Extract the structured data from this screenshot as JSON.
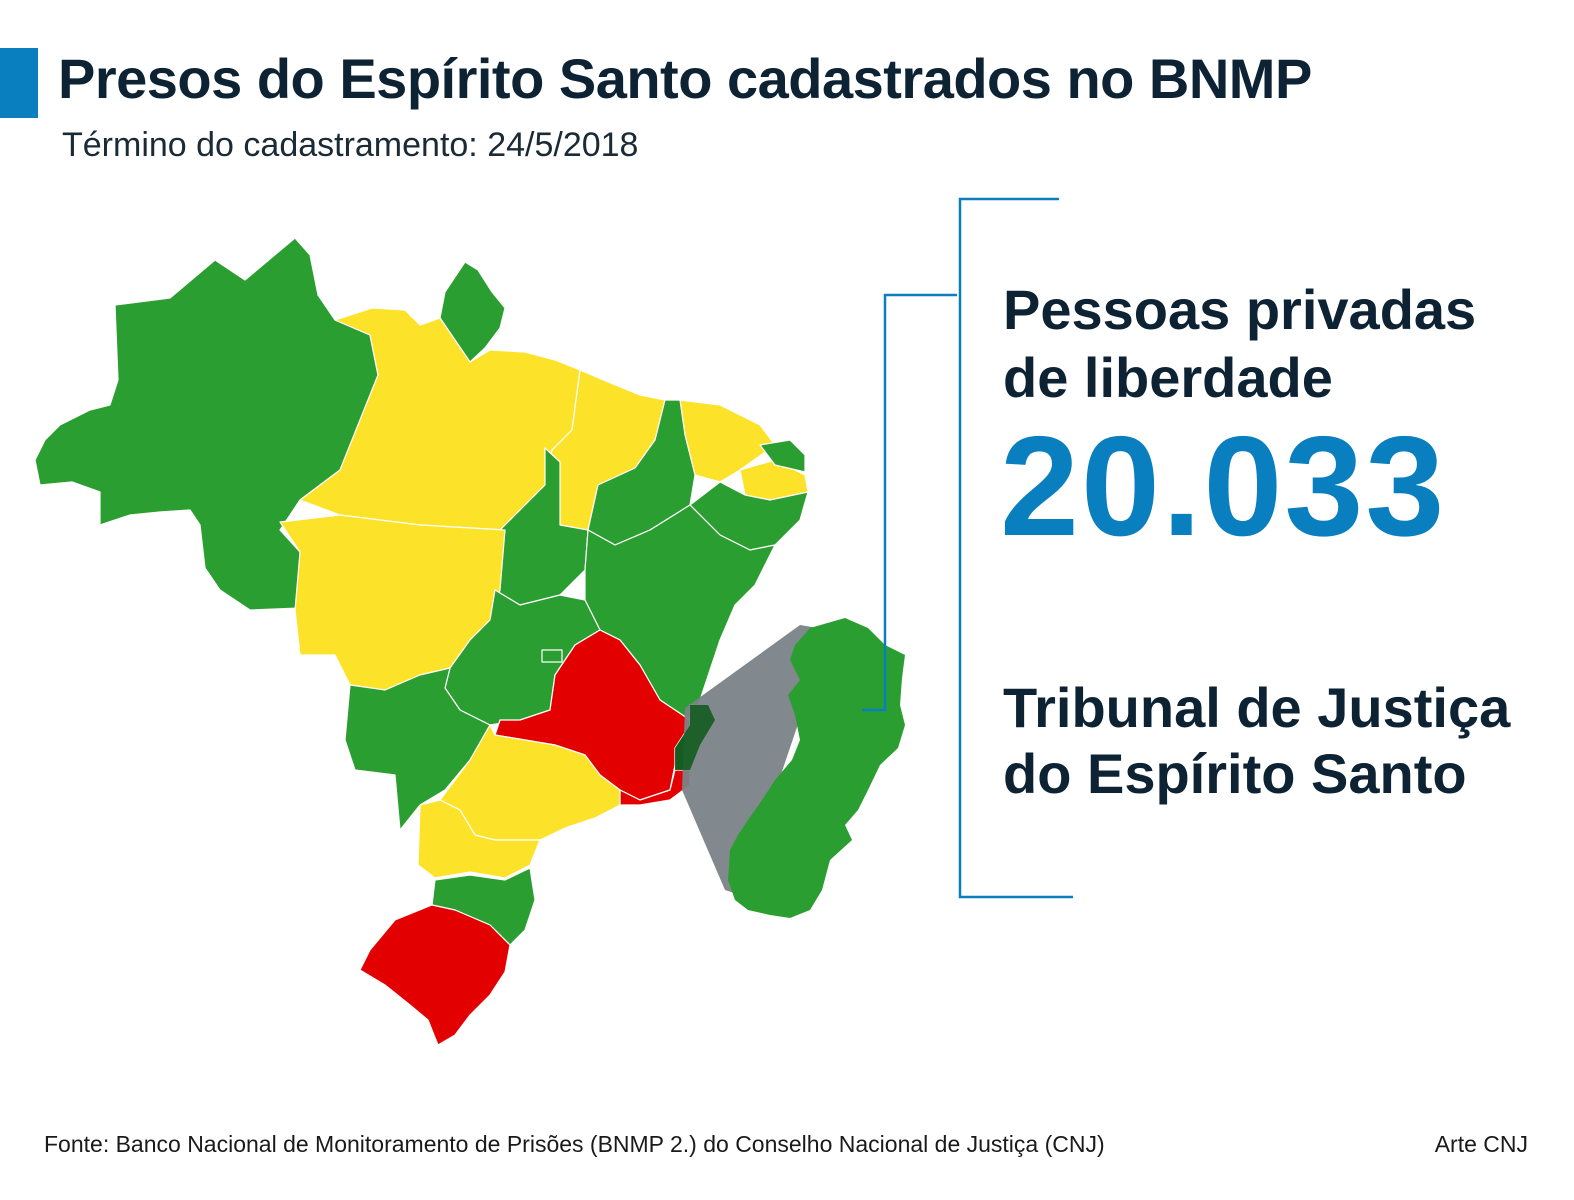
{
  "header": {
    "title": "Presos do Espírito Santo cadastrados no BNMP",
    "subtitle": "Término do cadastramento: 24/5/2018"
  },
  "colors": {
    "accent": "#0a7fbf",
    "status_green": "#2b9e31",
    "status_yellow": "#fde22a",
    "status_red": "#e30000",
    "highlight_grey": "#7b8388",
    "highlight_dark_green": "#145c20"
  },
  "map": {
    "legend_note": "",
    "highlighted_state": "Espírito Santo"
  },
  "stats": {
    "label_line1": "Pessoas privadas",
    "label_line2": "de liberdade",
    "value": "20.033",
    "court_line1": "Tribunal de Justiça",
    "court_line2": "do Espírito Santo"
  },
  "footer": {
    "source": "Fonte: Banco Nacional de Monitoramento de Prisões (BNMP 2.) do Conselho Nacional de Justiça (CNJ)",
    "credit": "Arte CNJ"
  }
}
